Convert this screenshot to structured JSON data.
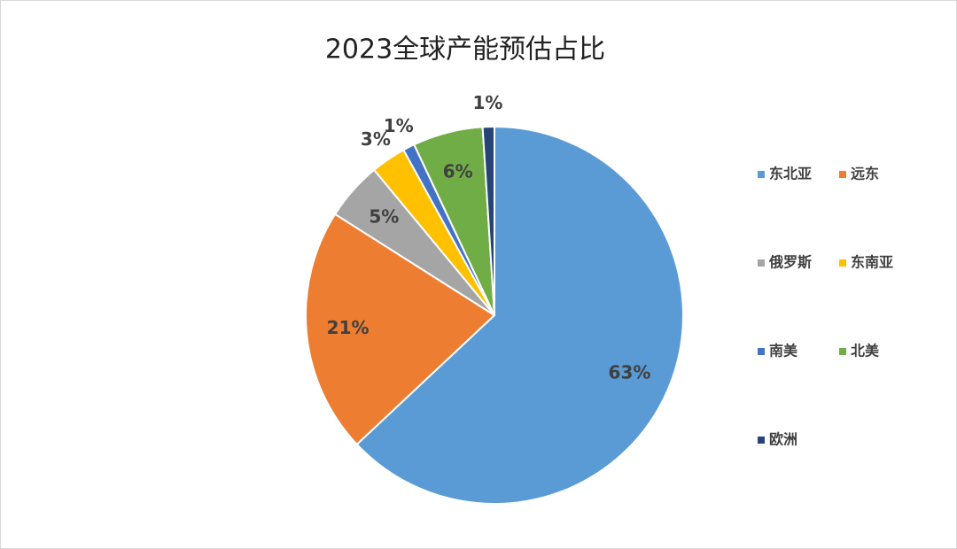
{
  "chart_data": {
    "type": "pie",
    "title": "2023全球产能预估占比",
    "categories": [
      "东北亚",
      "远东",
      "俄罗斯",
      "东南亚",
      "南美",
      "北美",
      "欧洲"
    ],
    "values": [
      63,
      21,
      5,
      3,
      1,
      6,
      1
    ],
    "value_labels": [
      "63%",
      "21%",
      "5%",
      "3%",
      "1%",
      "6%",
      "1%"
    ],
    "colors": [
      "#5b9bd5",
      "#ed7d31",
      "#a5a5a5",
      "#ffc000",
      "#4472c4",
      "#70ad47",
      "#264478"
    ],
    "legend": "right"
  }
}
